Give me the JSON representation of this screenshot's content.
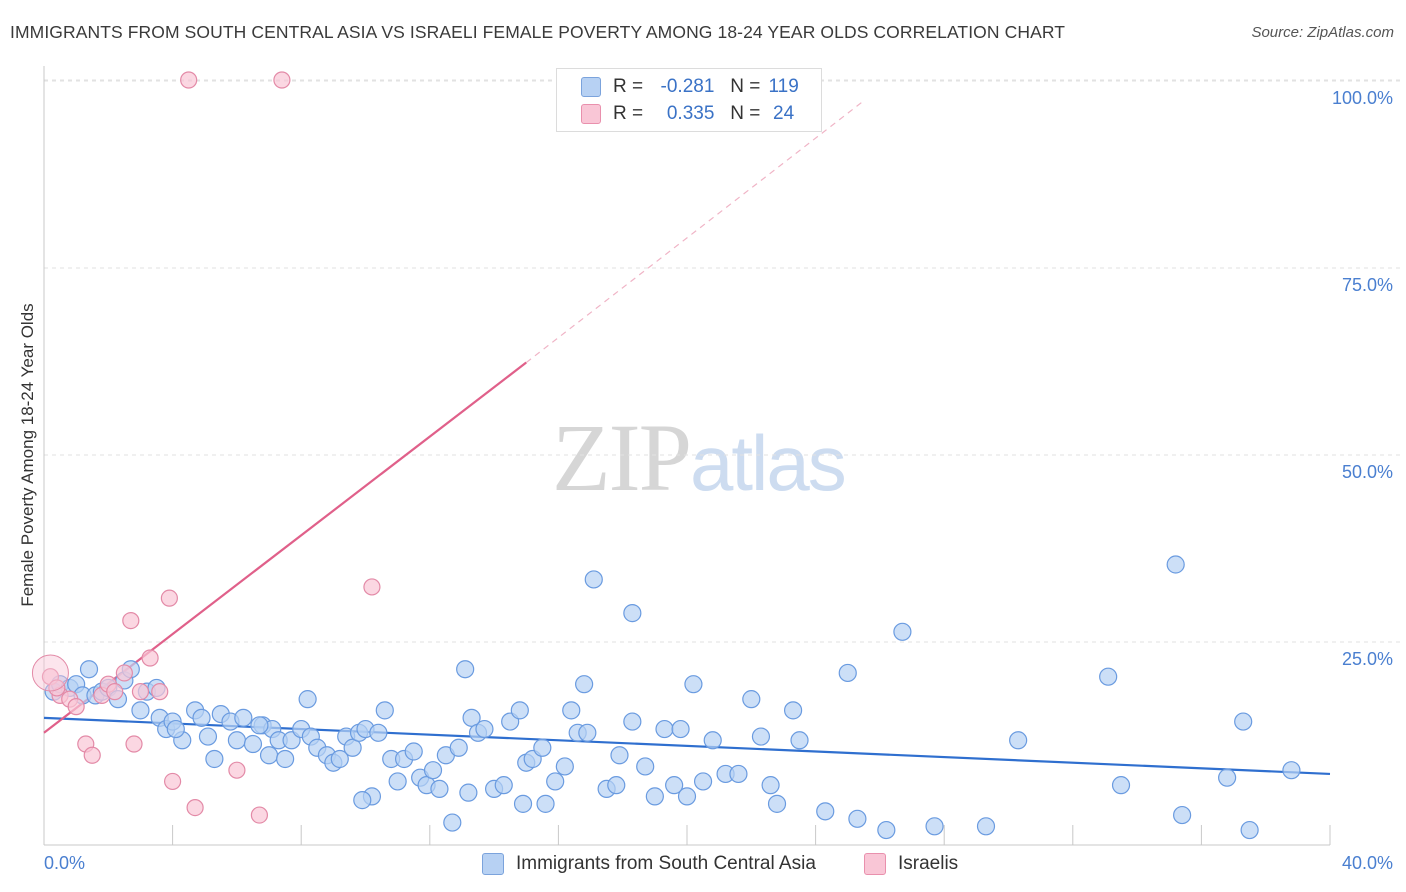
{
  "title": "IMMIGRANTS FROM SOUTH CENTRAL ASIA VS ISRAELI FEMALE POVERTY AMONG 18-24 YEAR OLDS CORRELATION CHART",
  "source": "Source: ZipAtlas.com",
  "watermark": {
    "zip": "ZIP",
    "atlas": "atlas"
  },
  "legend": {
    "r_label": "R =",
    "n_label": "N =",
    "rows": [
      {
        "r": "-0.281",
        "n": "119",
        "color": "#b7d1f3"
      },
      {
        "r": "0.335",
        "n": "24",
        "color": "#f9c6d6"
      }
    ]
  },
  "chart_data": {
    "type": "scatter",
    "title": "IMMIGRANTS FROM SOUTH CENTRAL ASIA VS ISRAELI FEMALE POVERTY AMONG 18-24 YEAR OLDS CORRELATION CHART",
    "xlabel": "",
    "ylabel": "Female Poverty Among 18-24 Year Olds",
    "xlim": [
      0,
      40
    ],
    "ylim": [
      0,
      100
    ],
    "x_tick_labels": [
      {
        "value": 0,
        "label": "0.0%"
      },
      {
        "value": 40,
        "label": "40.0%"
      }
    ],
    "y_tick_labels": [
      {
        "value": 25,
        "label": "25.0%"
      },
      {
        "value": 50,
        "label": "50.0%"
      },
      {
        "value": 75,
        "label": "75.0%"
      },
      {
        "value": 100,
        "label": "100.0%"
      }
    ],
    "grid": true,
    "legend_position": "bottom",
    "series": [
      {
        "name": "Immigrants from South Central Asia",
        "color": "#6a9be0",
        "fill": "#b7d1f3",
        "trend_color": "#2f6fcf",
        "trend": {
          "x": [
            0,
            40
          ],
          "y": [
            17.0,
            9.5
          ]
        },
        "points": [
          [
            0.3,
            20.5
          ],
          [
            0.5,
            21.5
          ],
          [
            0.8,
            21.0
          ],
          [
            1.0,
            21.5
          ],
          [
            1.2,
            20.0
          ],
          [
            1.4,
            23.5
          ],
          [
            1.6,
            20.0
          ],
          [
            1.8,
            20.5
          ],
          [
            2.0,
            21.0
          ],
          [
            2.3,
            19.5
          ],
          [
            2.5,
            22.0
          ],
          [
            2.7,
            23.5
          ],
          [
            3.0,
            18.0
          ],
          [
            3.2,
            20.5
          ],
          [
            3.5,
            21.0
          ],
          [
            3.6,
            17.0
          ],
          [
            3.8,
            15.5
          ],
          [
            4.0,
            16.5
          ],
          [
            4.3,
            14.0
          ],
          [
            4.7,
            18.0
          ],
          [
            4.9,
            17.0
          ],
          [
            5.1,
            14.5
          ],
          [
            5.3,
            11.5
          ],
          [
            5.5,
            17.5
          ],
          [
            5.8,
            16.5
          ],
          [
            6.0,
            14.0
          ],
          [
            6.2,
            17.0
          ],
          [
            6.5,
            13.5
          ],
          [
            6.8,
            16.0
          ],
          [
            7.0,
            12.0
          ],
          [
            7.1,
            15.5
          ],
          [
            7.3,
            14.0
          ],
          [
            7.5,
            11.5
          ],
          [
            7.7,
            14.0
          ],
          [
            8.0,
            15.5
          ],
          [
            8.2,
            19.5
          ],
          [
            8.3,
            14.5
          ],
          [
            8.5,
            13.0
          ],
          [
            8.8,
            12.0
          ],
          [
            9.0,
            11.0
          ],
          [
            9.2,
            11.5
          ],
          [
            9.4,
            14.5
          ],
          [
            9.6,
            13.0
          ],
          [
            9.8,
            15.0
          ],
          [
            10.0,
            15.5
          ],
          [
            10.2,
            6.5
          ],
          [
            10.4,
            15.0
          ],
          [
            10.6,
            18.0
          ],
          [
            10.8,
            11.5
          ],
          [
            11.0,
            8.5
          ],
          [
            11.2,
            11.5
          ],
          [
            11.5,
            12.5
          ],
          [
            11.7,
            9.0
          ],
          [
            11.9,
            8.0
          ],
          [
            12.1,
            10.0
          ],
          [
            12.3,
            7.5
          ],
          [
            12.5,
            12.0
          ],
          [
            12.7,
            3.0
          ],
          [
            12.9,
            13.0
          ],
          [
            13.1,
            23.5
          ],
          [
            13.3,
            17.0
          ],
          [
            13.5,
            15.0
          ],
          [
            13.7,
            15.5
          ],
          [
            14.0,
            7.5
          ],
          [
            14.3,
            8.0
          ],
          [
            14.5,
            16.5
          ],
          [
            14.8,
            18.0
          ],
          [
            15.0,
            11.0
          ],
          [
            15.2,
            11.5
          ],
          [
            15.5,
            13.0
          ],
          [
            15.6,
            5.5
          ],
          [
            15.9,
            8.5
          ],
          [
            16.2,
            10.5
          ],
          [
            16.4,
            18.0
          ],
          [
            16.6,
            15.0
          ],
          [
            16.8,
            21.5
          ],
          [
            17.5,
            7.5
          ],
          [
            17.8,
            8.0
          ],
          [
            17.9,
            12.0
          ],
          [
            18.3,
            16.5
          ],
          [
            18.7,
            10.5
          ],
          [
            19.0,
            6.5
          ],
          [
            19.3,
            15.5
          ],
          [
            19.6,
            8.0
          ],
          [
            19.8,
            15.5
          ],
          [
            20.0,
            6.5
          ],
          [
            20.2,
            21.5
          ],
          [
            20.5,
            8.5
          ],
          [
            20.8,
            14.0
          ],
          [
            21.2,
            9.5
          ],
          [
            21.6,
            9.5
          ],
          [
            22.0,
            19.5
          ],
          [
            22.3,
            14.5
          ],
          [
            22.6,
            8.0
          ],
          [
            22.8,
            5.5
          ],
          [
            23.3,
            18.0
          ],
          [
            23.5,
            14.0
          ],
          [
            25.0,
            23.0
          ],
          [
            25.3,
            3.5
          ],
          [
            26.7,
            28.5
          ],
          [
            29.3,
            2.5
          ],
          [
            30.3,
            14.0
          ],
          [
            33.1,
            22.5
          ],
          [
            33.5,
            8.0
          ],
          [
            35.2,
            37.5
          ],
          [
            35.4,
            4.0
          ],
          [
            36.8,
            9.0
          ],
          [
            37.3,
            16.5
          ],
          [
            37.5,
            2.0
          ],
          [
            38.8,
            10.0
          ],
          [
            17.1,
            35.5
          ],
          [
            18.3,
            31.0
          ],
          [
            27.7,
            2.5
          ],
          [
            24.3,
            4.5
          ],
          [
            16.9,
            15.0
          ],
          [
            14.9,
            5.5
          ],
          [
            26.2,
            2.0
          ],
          [
            13.2,
            7.0
          ],
          [
            6.7,
            16.0
          ],
          [
            9.9,
            6.0
          ],
          [
            4.1,
            15.5
          ]
        ]
      },
      {
        "name": "Israelis",
        "color": "#e38aa7",
        "fill": "#f9c6d6",
        "trend_color": "#e0608a",
        "trend": {
          "x": [
            0,
            15.0
          ],
          "y": [
            15.0,
            64.5
          ]
        },
        "trend_dashed": {
          "x": [
            15.0,
            25.5
          ],
          "y": [
            64.5,
            99.5
          ]
        },
        "points": [
          [
            0.2,
            22.5
          ],
          [
            0.5,
            20.0
          ],
          [
            0.8,
            19.5
          ],
          [
            1.0,
            18.5
          ],
          [
            1.3,
            13.5
          ],
          [
            1.5,
            12.0
          ],
          [
            1.8,
            20.0
          ],
          [
            2.0,
            21.5
          ],
          [
            2.2,
            20.5
          ],
          [
            2.5,
            23.0
          ],
          [
            2.7,
            30.0
          ],
          [
            2.8,
            13.5
          ],
          [
            3.0,
            20.5
          ],
          [
            3.3,
            25.0
          ],
          [
            3.6,
            20.5
          ],
          [
            3.9,
            33.0
          ],
          [
            4.0,
            8.5
          ],
          [
            4.5,
            100.0
          ],
          [
            4.7,
            5.0
          ],
          [
            6.0,
            10.0
          ],
          [
            6.7,
            4.0
          ],
          [
            7.4,
            100.0
          ],
          [
            10.2,
            34.5
          ],
          [
            0.4,
            21.0
          ]
        ]
      }
    ]
  }
}
